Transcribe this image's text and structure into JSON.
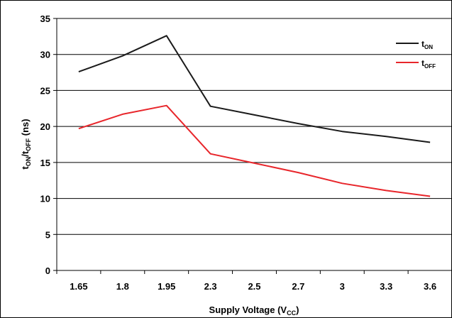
{
  "chart_data": {
    "type": "line",
    "categories": [
      "1.65",
      "1.8",
      "1.95",
      "2.3",
      "2.5",
      "2.7",
      "3",
      "3.3",
      "3.6"
    ],
    "series": [
      {
        "name": "tON",
        "name_main": "t",
        "name_sub": "ON",
        "color": "#1a1a1a",
        "values": [
          27.6,
          29.8,
          32.6,
          22.8,
          21.6,
          20.4,
          19.3,
          18.6,
          17.8
        ]
      },
      {
        "name": "tOFF",
        "name_main": "t",
        "name_sub": "OFF",
        "color": "#e8262b",
        "values": [
          19.7,
          21.7,
          22.9,
          16.2,
          14.9,
          13.6,
          12.1,
          11.1,
          10.3
        ]
      }
    ],
    "y_ticks": [
      "0",
      "5",
      "10",
      "15",
      "20",
      "25",
      "30",
      "35"
    ],
    "ylim": [
      0,
      35
    ],
    "grid": "horizontal",
    "legend_position": "top-right",
    "xlabel": {
      "main": "Supply Voltage (V",
      "sub": "CC",
      "end": ")"
    },
    "ylabel": {
      "t1": "t",
      "s1": "ON",
      "sep": "/t",
      "s2": "OFF",
      "end": " (ns)"
    }
  }
}
